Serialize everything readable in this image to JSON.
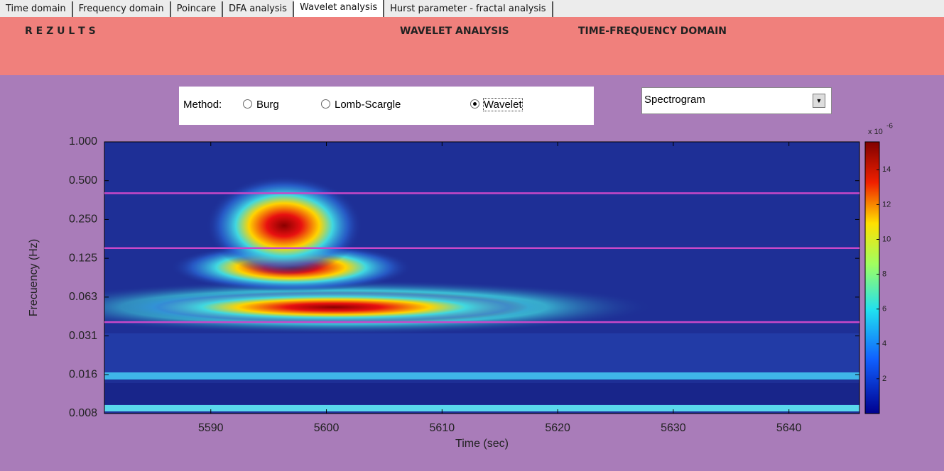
{
  "tabs": [
    "Time domain",
    "Frequency domain",
    "Poincare",
    "DFA analysis",
    "Wavelet analysis",
    "Hurst parameter - fractal analysis"
  ],
  "active_tab": 4,
  "header": {
    "title": "R E Z U L T S",
    "analysis": "WAVELET ANALYSIS",
    "domain": "TIME-FREQUENCY DOMAIN"
  },
  "method": {
    "label": "Method:",
    "options": [
      "Burg",
      "Lomb-Scargle",
      "Wavelet"
    ],
    "selected": 2
  },
  "dropdown": {
    "value": "Spectrogram"
  },
  "chart_data": {
    "type": "heatmap",
    "x_label": "Time (sec)",
    "y_label": "Frecuency (Hz)",
    "xlim": [
      5580.8,
      5646.1
    ],
    "xticks": [
      5590,
      5600,
      5610,
      5620,
      5630,
      5640
    ],
    "ylim": [
      0.0078125,
      1
    ],
    "yscale": "log",
    "yticks": [
      {
        "value": 1,
        "label": "1.000"
      },
      {
        "value": 0.5,
        "label": "0.500"
      },
      {
        "value": 0.25,
        "label": "0.250"
      },
      {
        "value": 0.125,
        "label": "0.125"
      },
      {
        "value": 0.0625,
        "label": "0.063"
      },
      {
        "value": 0.03125,
        "label": "0.031"
      },
      {
        "value": 0.015625,
        "label": "0.016"
      },
      {
        "value": 0.0078125,
        "label": "0.008"
      }
    ],
    "band_lines": [
      0.04,
      0.15,
      0.4
    ],
    "band_line_color": "#c848c8",
    "colorbar": {
      "lim": [
        0,
        15.6
      ],
      "ticks": [
        2,
        4,
        6,
        8,
        10,
        12,
        14
      ],
      "scale_label": "x 10",
      "scale_exponent": "-6"
    }
  }
}
